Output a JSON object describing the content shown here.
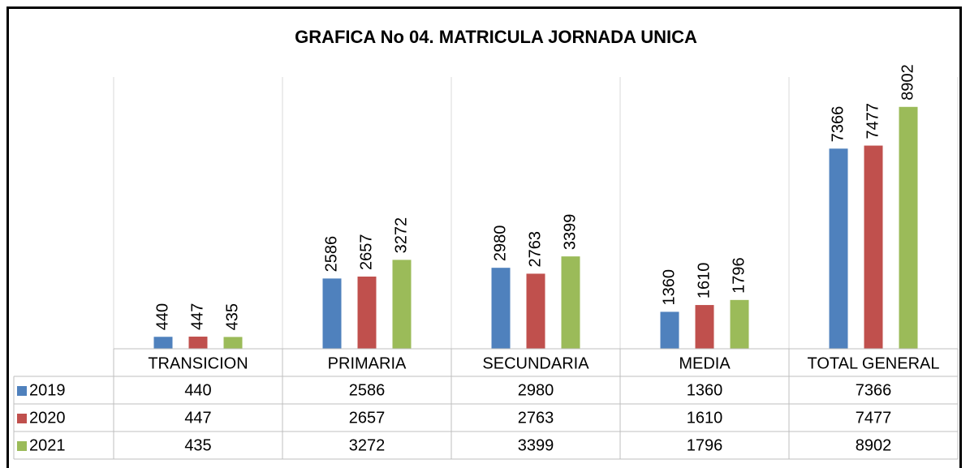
{
  "chart_data": {
    "type": "bar",
    "title": "GRAFICA No 04. MATRICULA JORNADA UNICA",
    "categories": [
      "TRANSICION",
      "PRIMARIA",
      "SECUNDARIA",
      "MEDIA",
      "TOTAL GENERAL"
    ],
    "series": [
      {
        "name": "2019",
        "color": "#4f81bd",
        "values": [
          440,
          2586,
          2980,
          1360,
          7366
        ]
      },
      {
        "name": "2020",
        "color": "#c0504d",
        "values": [
          447,
          2657,
          2763,
          1610,
          7477
        ]
      },
      {
        "name": "2021",
        "color": "#9bbb59",
        "values": [
          435,
          3272,
          3399,
          1796,
          8902
        ]
      }
    ],
    "ylim": [
      0,
      10000
    ],
    "data_table": true
  }
}
